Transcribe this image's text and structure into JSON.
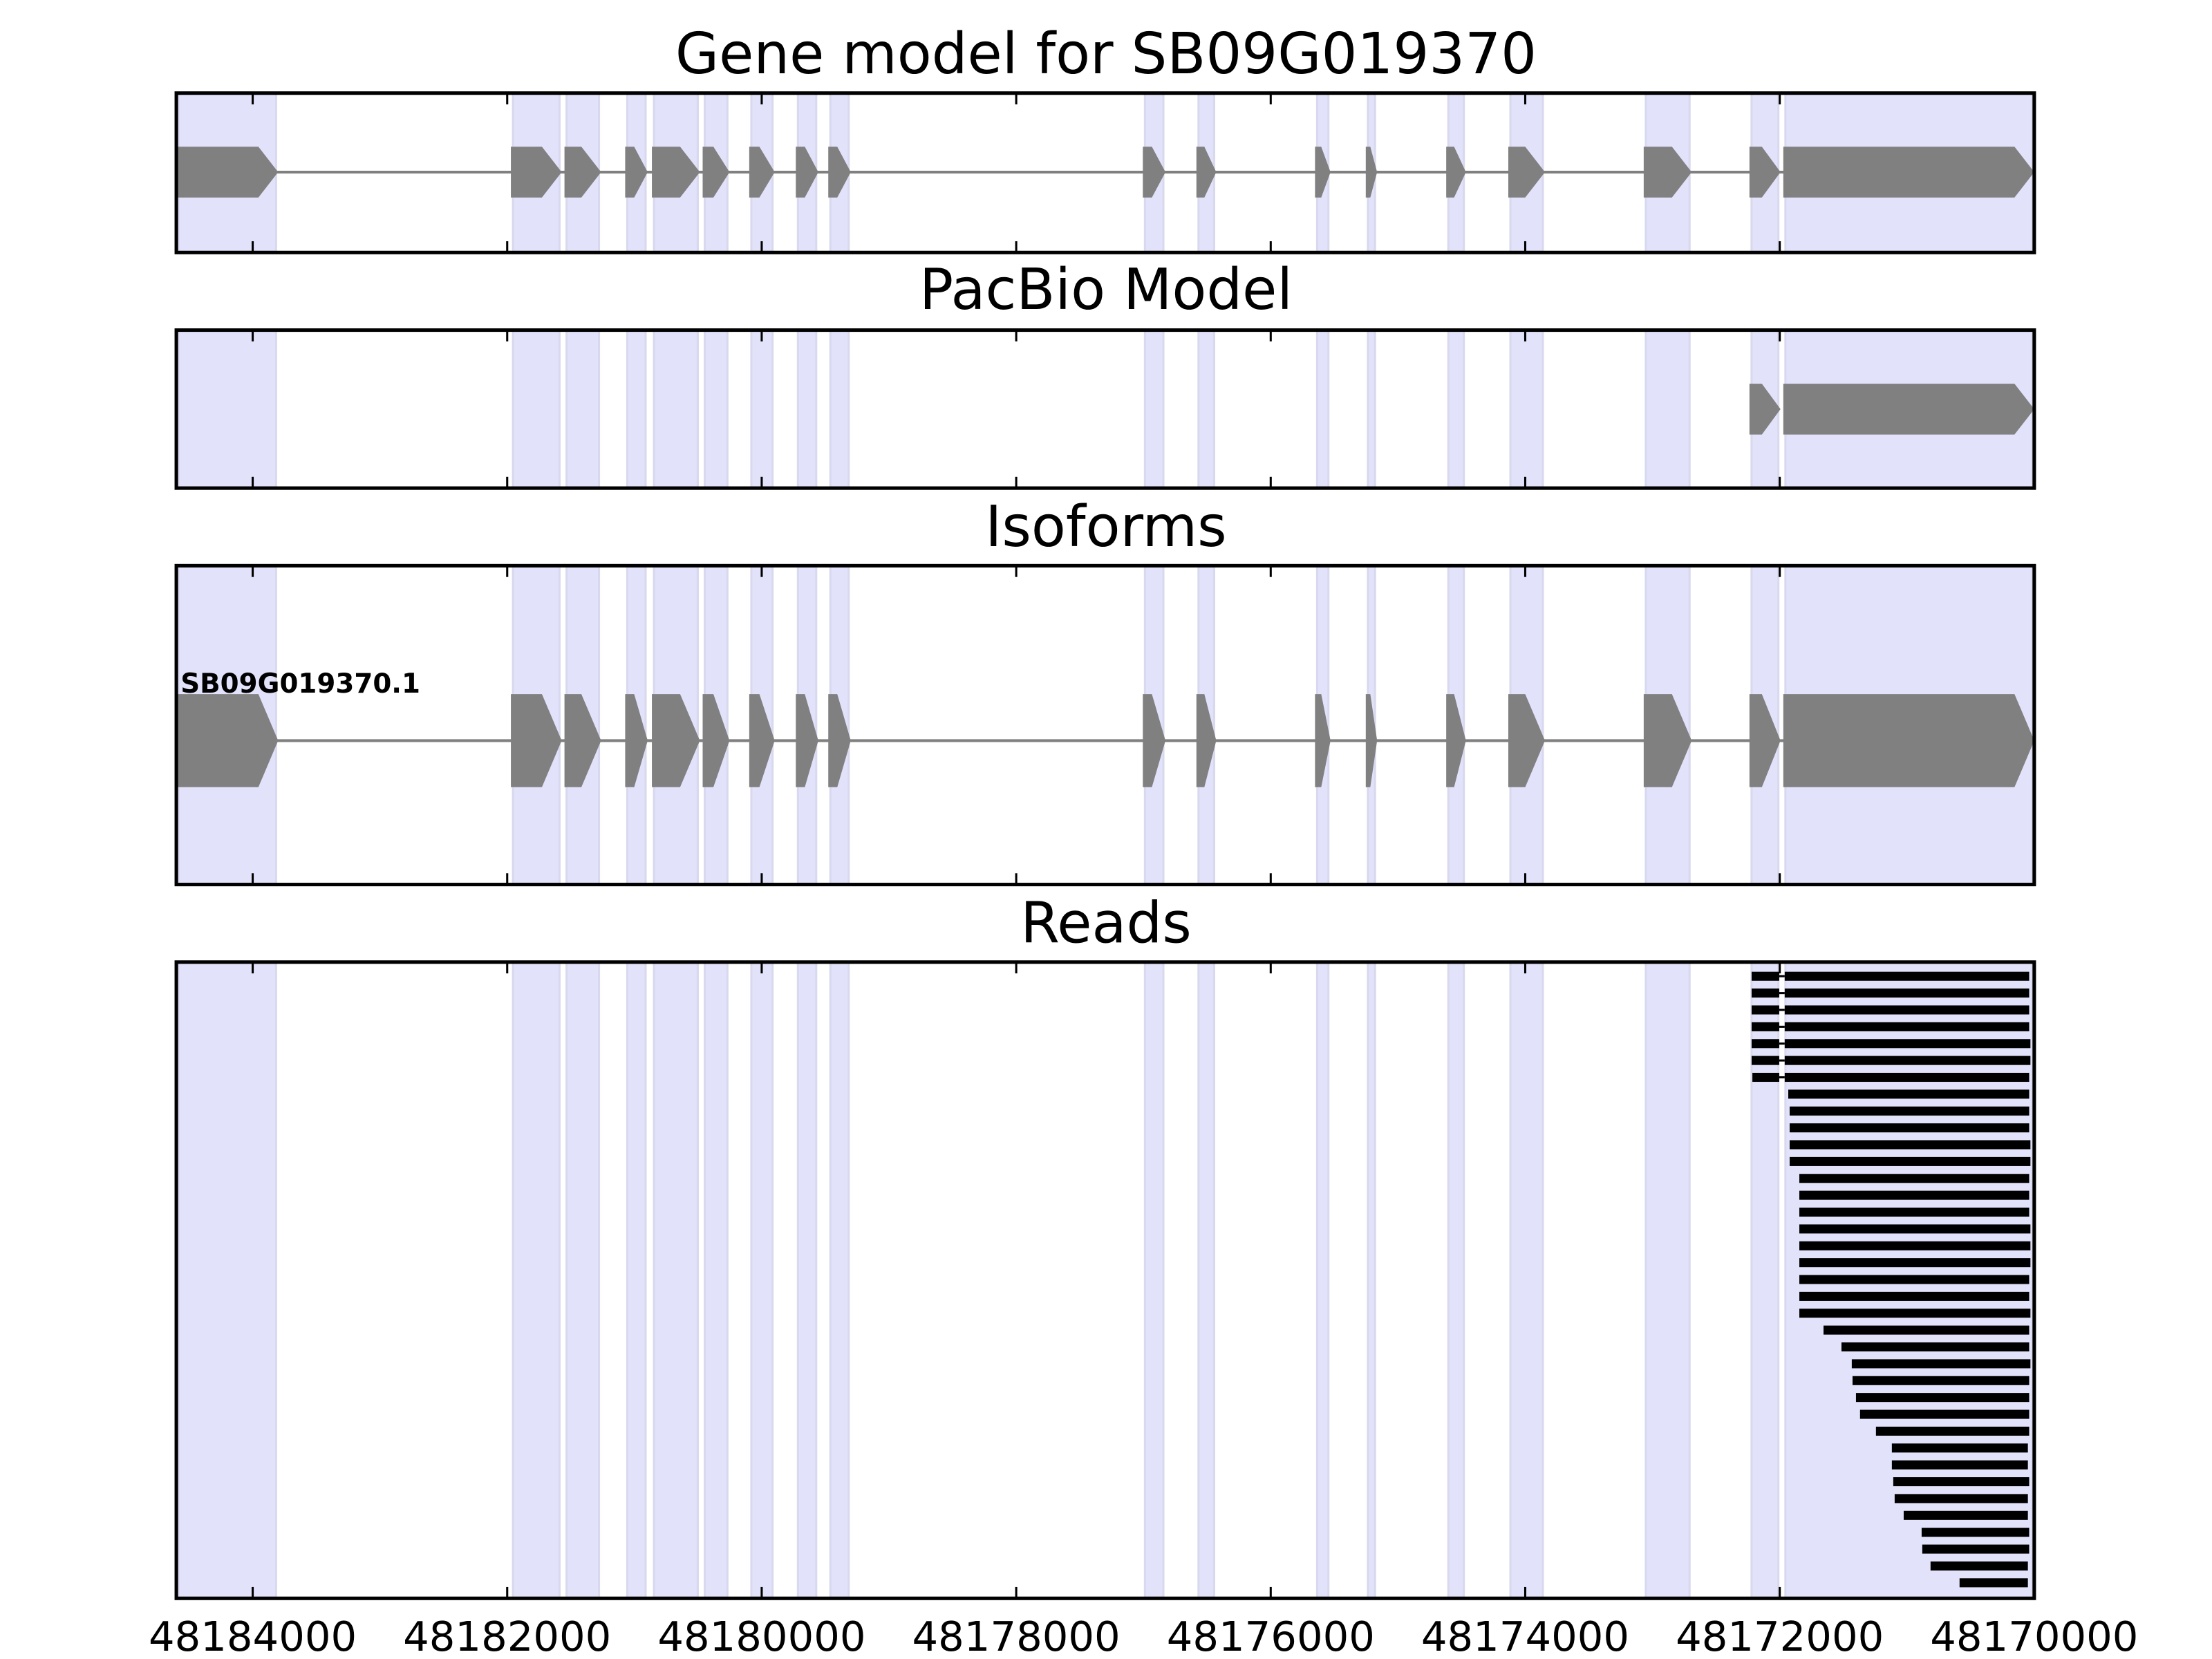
{
  "chart_data": {
    "type": "gene-track",
    "xlim": [
      48184600,
      48170000
    ],
    "x_ticks": [
      48184000,
      48182000,
      48180000,
      48178000,
      48176000,
      48174000,
      48172000,
      48170000
    ],
    "x_tick_labels": [
      "48184000",
      "48182000",
      "48180000",
      "48178000",
      "48176000",
      "48174000",
      "48172000",
      "48170000"
    ],
    "colors": {
      "exon": "#808080",
      "intron": "#808080",
      "shade": "#e2e2fb",
      "read": "#000000"
    },
    "exons": [
      [
        48184600,
        48183800
      ],
      [
        48181971,
        48181572
      ],
      [
        48181550,
        48181262
      ],
      [
        48181073,
        48180896
      ],
      [
        48180863,
        48180486
      ],
      [
        48180464,
        48180253
      ],
      [
        48180098,
        48179898
      ],
      [
        48179732,
        48179555
      ],
      [
        48179477,
        48179300
      ],
      [
        48177005,
        48176827
      ],
      [
        48176584,
        48176428
      ],
      [
        48175652,
        48175530
      ],
      [
        48175253,
        48175164
      ],
      [
        48174621,
        48174466
      ],
      [
        48174133,
        48173845
      ],
      [
        48173069,
        48172692
      ],
      [
        48172238,
        48171994
      ],
      [
        48171972,
        48170000
      ]
    ],
    "panels": [
      {
        "title": "Gene model for SB09G019370",
        "kind": "gene"
      },
      {
        "title": "PacBio Model",
        "kind": "pacbio",
        "exons": [
          [
            48172238,
            48171994
          ],
          [
            48171972,
            48170000
          ]
        ]
      },
      {
        "title": "Isoforms",
        "kind": "isoform",
        "isoform_label": "SB09G019370.1"
      },
      {
        "title": "Reads",
        "kind": "reads"
      }
    ],
    "reads": [
      [
        [
          48172221,
          48172004
        ],
        [
          48171961,
          48170040
        ]
      ],
      [
        [
          48172221,
          48172004
        ],
        [
          48171961,
          48170040
        ]
      ],
      [
        [
          48172221,
          48172004
        ],
        [
          48171961,
          48170040
        ]
      ],
      [
        [
          48172221,
          48172004
        ],
        [
          48171961,
          48170040
        ]
      ],
      [
        [
          48172221,
          48172004
        ],
        [
          48171961,
          48170030
        ]
      ],
      [
        [
          48172221,
          48172004
        ],
        [
          48171961,
          48170030
        ]
      ],
      [
        [
          48172215,
          48172004
        ],
        [
          48171961,
          48170040
        ]
      ],
      [
        [
          48171933,
          48170040
        ]
      ],
      [
        [
          48171922,
          48170040
        ]
      ],
      [
        [
          48171922,
          48170040
        ]
      ],
      [
        [
          48171922,
          48170030
        ]
      ],
      [
        [
          48171922,
          48170030
        ]
      ],
      [
        [
          48171846,
          48170040
        ]
      ],
      [
        [
          48171846,
          48170040
        ]
      ],
      [
        [
          48171846,
          48170040
        ]
      ],
      [
        [
          48171846,
          48170030
        ]
      ],
      [
        [
          48171846,
          48170030
        ]
      ],
      [
        [
          48171846,
          48170030
        ]
      ],
      [
        [
          48171846,
          48170040
        ]
      ],
      [
        [
          48171846,
          48170040
        ]
      ],
      [
        [
          48171846,
          48170030
        ]
      ],
      [
        [
          48171656,
          48170040
        ]
      ],
      [
        [
          48171515,
          48170040
        ]
      ],
      [
        [
          48171434,
          48170030
        ]
      ],
      [
        [
          48171428,
          48170040
        ]
      ],
      [
        [
          48171401,
          48170040
        ]
      ],
      [
        [
          48171369,
          48170040
        ]
      ],
      [
        [
          48171244,
          48170040
        ]
      ],
      [
        [
          48171119,
          48170050
        ]
      ],
      [
        [
          48171119,
          48170050
        ]
      ],
      [
        [
          48171108,
          48170040
        ]
      ],
      [
        [
          48171097,
          48170050
        ]
      ],
      [
        [
          48171026,
          48170050
        ]
      ],
      [
        [
          48170885,
          48170040
        ]
      ],
      [
        [
          48170880,
          48170040
        ]
      ],
      [
        [
          48170815,
          48170050
        ]
      ],
      [
        [
          48170587,
          48170050
        ]
      ]
    ]
  }
}
